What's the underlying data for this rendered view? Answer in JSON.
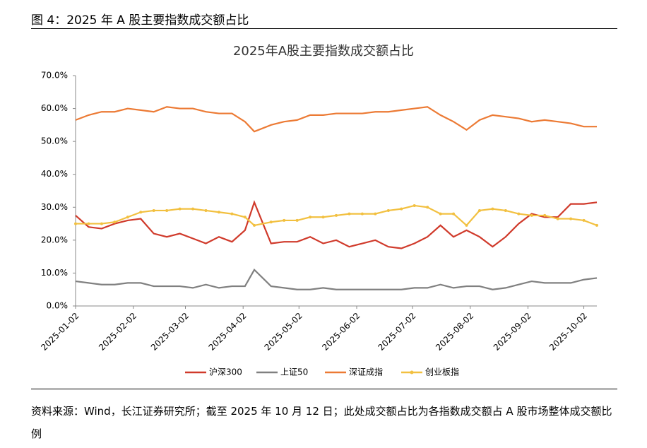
{
  "header": {
    "title": "图 4：2025 年 A 股主要指数成交额占比"
  },
  "chart_data": {
    "type": "line",
    "title": "2025年A股主要指数成交额占比",
    "x": [
      "2025-01-02",
      "2025-01-09",
      "2025-01-16",
      "2025-01-23",
      "2025-01-30",
      "2025-02-06",
      "2025-02-13",
      "2025-02-20",
      "2025-02-27",
      "2025-03-06",
      "2025-03-13",
      "2025-03-20",
      "2025-03-27",
      "2025-04-03",
      "2025-04-08",
      "2025-04-17",
      "2025-04-24",
      "2025-05-01",
      "2025-05-08",
      "2025-05-15",
      "2025-05-22",
      "2025-05-29",
      "2025-06-05",
      "2025-06-12",
      "2025-06-19",
      "2025-06-26",
      "2025-07-03",
      "2025-07-10",
      "2025-07-17",
      "2025-07-24",
      "2025-07-31",
      "2025-08-07",
      "2025-08-14",
      "2025-08-21",
      "2025-08-28",
      "2025-09-04",
      "2025-09-11",
      "2025-09-18",
      "2025-09-25",
      "2025-10-02",
      "2025-10-09"
    ],
    "xlim": [
      "2025-01-02",
      "2025-10-09"
    ],
    "xticks": [
      "2025-01-02",
      "2025-02-02",
      "2025-03-02",
      "2025-04-02",
      "2025-05-02",
      "2025-06-02",
      "2025-07-02",
      "2025-08-02",
      "2025-09-02",
      "2025-10-02"
    ],
    "ylim": [
      0,
      70
    ],
    "yticks": [
      {
        "value": 0,
        "label": "0.0%"
      },
      {
        "value": 10,
        "label": "10.0%"
      },
      {
        "value": 20,
        "label": "20.0%"
      },
      {
        "value": 30,
        "label": "30.0%"
      },
      {
        "value": 40,
        "label": "40.0%"
      },
      {
        "value": 50,
        "label": "50.0%"
      },
      {
        "value": 60,
        "label": "60.0%"
      },
      {
        "value": 70,
        "label": "70.0%"
      }
    ],
    "grid": false,
    "series": [
      {
        "name": "沪深300",
        "color": "#d03a2b",
        "values": [
          27.5,
          24,
          23.5,
          25,
          26,
          26.5,
          22,
          21,
          22,
          20.5,
          19,
          21,
          19.5,
          23,
          31.5,
          19,
          19.5,
          19.5,
          21,
          19,
          20,
          18,
          19,
          20,
          18,
          17.5,
          19,
          21,
          24.5,
          21,
          23,
          21,
          18,
          21,
          25,
          28,
          27,
          27,
          31,
          31,
          31.5
        ]
      },
      {
        "name": "上证50",
        "color": "#808080",
        "values": [
          7.5,
          7,
          6.5,
          6.5,
          7,
          7,
          6,
          6,
          6,
          5.5,
          6.5,
          5.5,
          6,
          6,
          11,
          6,
          5.5,
          5,
          5,
          5.5,
          5,
          5,
          5,
          5,
          5,
          5,
          5.5,
          5.5,
          6.5,
          5.5,
          6,
          6,
          5,
          5.5,
          6.5,
          7.5,
          7,
          7,
          7,
          8,
          8.5
        ]
      },
      {
        "name": "深证成指",
        "color": "#ec7a34",
        "values": [
          56.5,
          58,
          59,
          59,
          60,
          59.5,
          59,
          60.5,
          60,
          60,
          59,
          58.5,
          58.5,
          56,
          53,
          55,
          56,
          56.5,
          58,
          58,
          58.5,
          58.5,
          58.5,
          59,
          59,
          59.5,
          60,
          60.5,
          58,
          56,
          53.5,
          56.5,
          58,
          57.5,
          57,
          56,
          56.5,
          56,
          55.5,
          54.5,
          54.5
        ]
      },
      {
        "name": "创业板指",
        "color": "#f2c040",
        "marker": true,
        "values": [
          25,
          25,
          25,
          25.5,
          27,
          28.5,
          29,
          29,
          29.5,
          29.5,
          29,
          28.5,
          28,
          27,
          24.5,
          25.5,
          26,
          26,
          27,
          27,
          27.5,
          28,
          28,
          28,
          29,
          29.5,
          30.5,
          30,
          28,
          28,
          24.5,
          29,
          29.5,
          29,
          28,
          27.5,
          27.5,
          26.5,
          26.5,
          26,
          24.5
        ]
      }
    ]
  },
  "footer": {
    "source": "资料来源：Wind，长江证券研究所；截至 2025 年 10 月 12 日；此处成交额占比为各指数成交额占 A 股市场整体成交额比例"
  }
}
